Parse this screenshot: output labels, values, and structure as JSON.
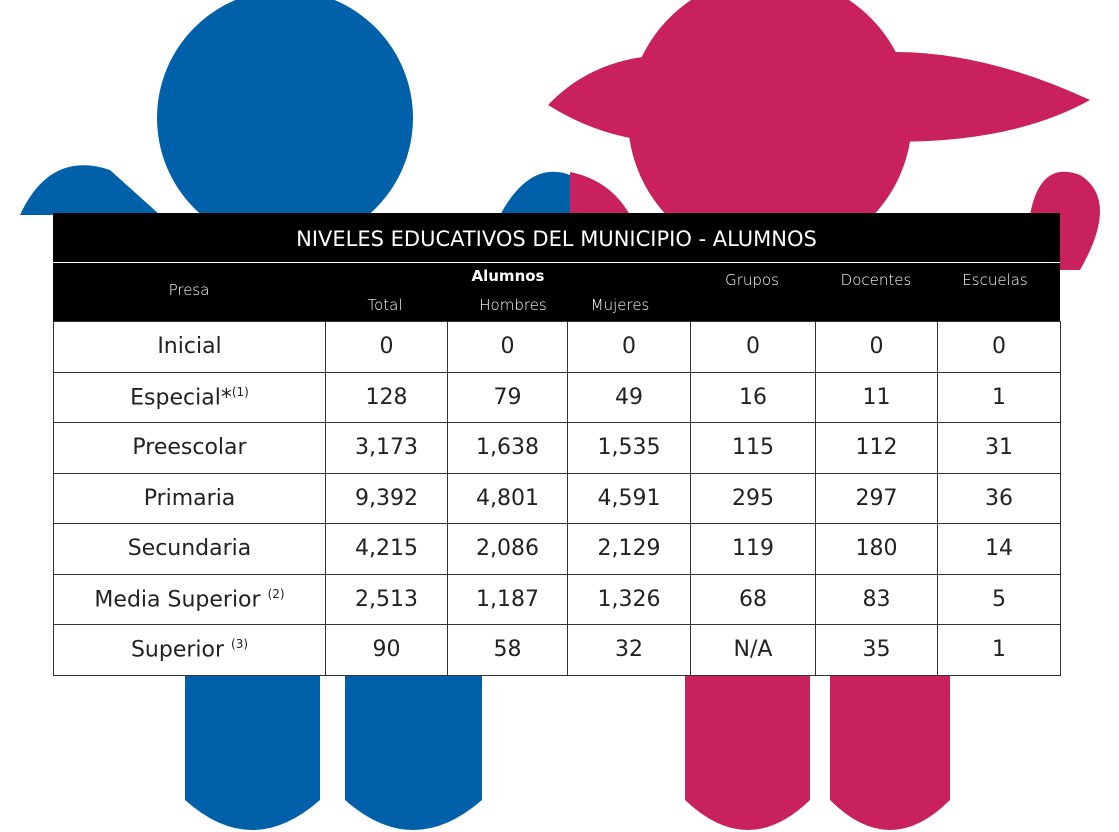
{
  "table": {
    "title": "NIVELES EDUCATIVOS DEL MUNICIPIO - ALUMNOS",
    "header": {
      "place": "Presa",
      "group": "Alumnos",
      "total": "Total",
      "men": "Hombres",
      "women": "Mujeres",
      "groups": "Grupos",
      "teachers": "Docentes",
      "schools": "Escuelas"
    },
    "rows": [
      {
        "label": "Inicial",
        "note": null,
        "cells": [
          "0",
          "0",
          "0",
          "0",
          "0",
          "0"
        ]
      },
      {
        "label": "Especial*",
        "note": "(1)",
        "cells": [
          "128",
          "79",
          "49",
          "16",
          "11",
          "1"
        ]
      },
      {
        "label": "Preescolar",
        "note": null,
        "cells": [
          "3,173",
          "1,638",
          "1,535",
          "115",
          "112",
          "31"
        ]
      },
      {
        "label": "Primaria",
        "note": null,
        "cells": [
          "9,392",
          "4,801",
          "4,591",
          "295",
          "297",
          "36"
        ]
      },
      {
        "label": "Secundaria",
        "note": null,
        "cells": [
          "4,215",
          "2,086",
          "2,129",
          "119",
          "180",
          "14"
        ]
      },
      {
        "label": "Media Superior ",
        "note": "(2)",
        "cells": [
          "2,513",
          "1,187",
          "1,326",
          "68",
          "83",
          "5"
        ]
      },
      {
        "label": "Superior ",
        "note": "(3)",
        "cells": [
          "90",
          "58",
          "32",
          "N/A",
          "35",
          "1"
        ]
      }
    ]
  }
}
